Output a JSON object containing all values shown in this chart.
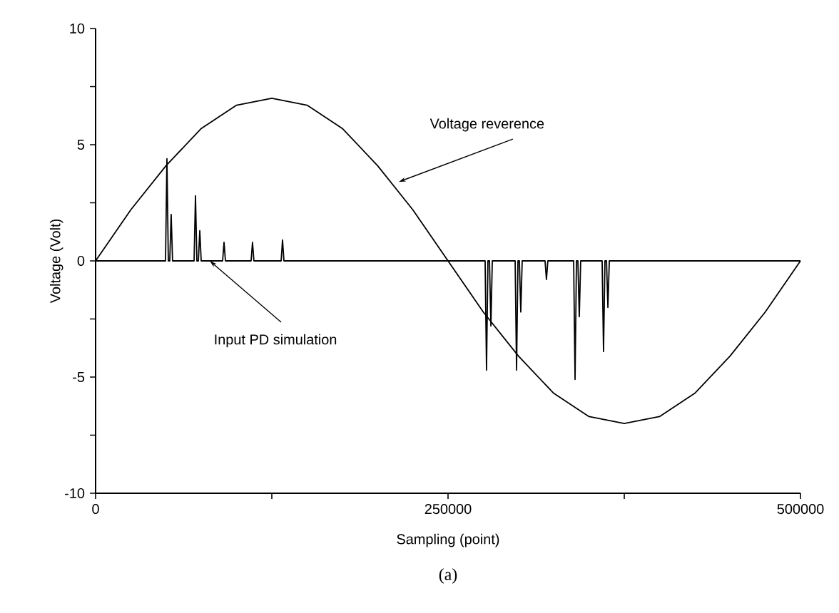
{
  "chart_data": {
    "type": "line",
    "xlabel": "Sampling (point)",
    "ylabel": "Voltage (Volt)",
    "xlim": [
      0,
      500000
    ],
    "ylim": [
      -10,
      10
    ],
    "xticks": [
      0,
      {
        "value": 125000,
        "label": null
      },
      250000,
      {
        "value": 375000,
        "label": null
      },
      500000
    ],
    "yticks": [
      -10,
      {
        "value": -7.5,
        "label": null
      },
      -5,
      {
        "value": -2.5,
        "label": null
      },
      0,
      {
        "value": 2.5,
        "label": null
      },
      5,
      {
        "value": 7.5,
        "label": null
      },
      10
    ],
    "series": [
      {
        "color": "#000000",
        "x": [
          0,
          25000,
          50000,
          75000,
          100000,
          125000,
          150000,
          175000,
          200000,
          225000,
          250000,
          275000,
          300000,
          325000,
          350000,
          375000,
          400000,
          425000,
          450000,
          475000,
          500000
        ],
        "values": [
          0,
          2.2,
          4.1,
          5.7,
          6.7,
          7.0,
          6.7,
          5.7,
          4.1,
          2.2,
          0,
          -2.2,
          -4.1,
          -5.7,
          -6.7,
          -7.0,
          -6.7,
          -5.7,
          -4.1,
          -2.2,
          0
        ]
      },
      {
        "color": "#000000",
        "x": [
          0,
          49600,
          50600,
          51600,
          52600,
          53600,
          54600,
          69850,
          70850,
          71850,
          72900,
          73900,
          74900,
          90100,
          91100,
          92100,
          110300,
          111300,
          112300,
          131600,
          132600,
          133600,
          276300,
          277300,
          278300,
          279400,
          280400,
          281400,
          297600,
          298600,
          299600,
          300600,
          301600,
          302600,
          318800,
          319800,
          320800,
          339100,
          340100,
          341100,
          342100,
          343100,
          344100,
          359300,
          360300,
          361300,
          362400,
          363400,
          364400,
          500000
        ],
        "values": [
          0,
          0,
          4.4,
          0,
          0,
          2.0,
          0,
          0,
          2.8,
          0,
          0,
          1.3,
          0,
          0,
          0.8,
          0,
          0,
          0.8,
          0,
          0,
          0.9,
          0,
          0,
          -4.7,
          0,
          0,
          -2.8,
          0,
          0,
          -4.7,
          0,
          0,
          -2.2,
          0,
          0,
          -0.8,
          0,
          0,
          -5.1,
          0,
          0,
          -2.4,
          0,
          0,
          -3.9,
          0,
          0,
          -2.0,
          0,
          0
        ]
      }
    ],
    "annotations": [
      {
        "text": "Voltage reverence",
        "x": 215000,
        "y": 3.4
      },
      {
        "text": "Input PD simulation",
        "x": 81000,
        "y": 0
      },
      "(a)"
    ],
    "line_style": "solid",
    "marker": "none"
  }
}
